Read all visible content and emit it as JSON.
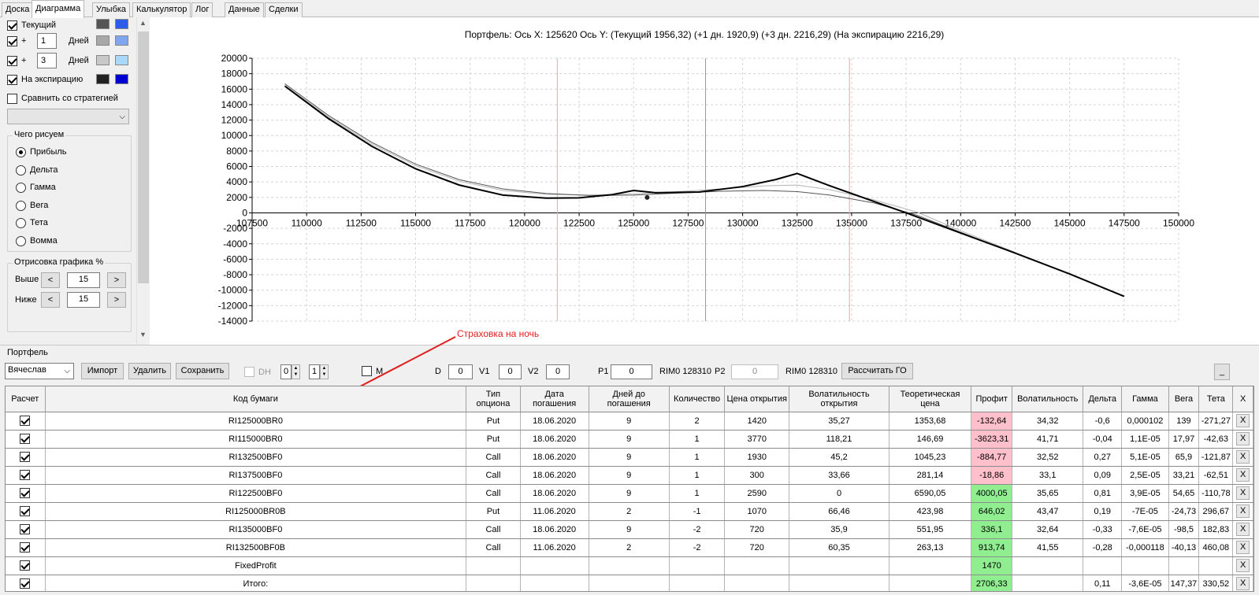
{
  "tabs": [
    "Доска",
    "Диаграмма",
    "Улыбка",
    "Калькулятор",
    "Лог",
    "Данные",
    "Сделки"
  ],
  "active_tab": "Диаграмма",
  "left_panel": {
    "current_label": "Текущий",
    "plus_label": "+",
    "days_label": "Дней",
    "plus1_value": "1",
    "plus3_value": "3",
    "expiry_label": "На экспирацию",
    "compare_label": "Сравнить со стратегией",
    "draw_group_title": "Чего рисуем",
    "radio_options": [
      "Прибыль",
      "Дельта",
      "Гамма",
      "Вега",
      "Тета",
      "Вомма"
    ],
    "draw_pct_title": "Отрисовка графика %",
    "above_label": "Выше",
    "below_label": "Ниже",
    "above_value": "15",
    "below_value": "15",
    "dec_label": "<",
    "inc_label": ">",
    "swatch_colors": {
      "current_dark": "#555555",
      "current_light": "#2b5de8",
      "plus1_dark": "#a8a8a8",
      "plus1_light": "#7fa6ef",
      "plus3_dark": "#c8c8c8",
      "plus3_light": "#aad8fa",
      "expiry_dark": "#222222",
      "expiry_light": "#0000d0"
    }
  },
  "chart_data": {
    "type": "line",
    "title": "Портфель: Ось X: 125620 Ось Y:  (Текущий 1956,32)  (+1 дн. 1920,9)  (+3 дн. 2216,29)  (На экспирацию 2216,29)",
    "xlim": [
      107500,
      150000
    ],
    "ylim": [
      -14000,
      20000
    ],
    "x_ticks": [
      107500,
      110000,
      112500,
      115000,
      117500,
      120000,
      122500,
      125000,
      127500,
      130000,
      132500,
      135000,
      137500,
      140000,
      142500,
      145000,
      147500,
      150000
    ],
    "y_ticks": [
      20000,
      18000,
      16000,
      14000,
      12000,
      10000,
      8000,
      6000,
      4000,
      2000,
      0,
      -2000,
      -4000,
      -6000,
      -8000,
      -10000,
      -12000,
      -14000
    ],
    "grid": true,
    "vlines": [
      {
        "x": 121500,
        "color": "#f4a0b0"
      },
      {
        "x": 128300,
        "color": "#8a9ab0"
      },
      {
        "x": 134900,
        "color": "#f4a0b0"
      }
    ],
    "marker": {
      "x": 125620,
      "y": 2000
    },
    "series": [
      {
        "color": "#000000",
        "width": 2,
        "x": [
          109000,
          111000,
          113000,
          115000,
          117000,
          119000,
          121000,
          122500,
          124000,
          125000,
          126000,
          128000,
          130000,
          131500,
          132500,
          134000,
          137500,
          140000,
          142500,
          145000,
          147500
        ],
        "y": [
          16400,
          12200,
          8600,
          5700,
          3600,
          2300,
          1900,
          1950,
          2350,
          2900,
          2600,
          2700,
          3400,
          4300,
          5100,
          3500,
          0,
          -2600,
          -5200,
          -7900,
          -10800
        ]
      },
      {
        "color": "#555555",
        "width": 1,
        "x": [
          109000,
          111000,
          113000,
          115000,
          117000,
          119000,
          121000,
          123000,
          125000,
          127000,
          129000,
          131000,
          132500,
          134000,
          136000,
          138000,
          140000,
          142500
        ],
        "y": [
          16700,
          12600,
          9100,
          6300,
          4300,
          3100,
          2500,
          2250,
          2300,
          2550,
          2800,
          2900,
          2750,
          2300,
          1300,
          -300,
          -2500,
          -5200
        ]
      },
      {
        "color": "#b4b4b4",
        "width": 1,
        "x": [
          109000,
          111000,
          113000,
          115000,
          117000,
          119000,
          121000,
          123000,
          125000,
          127000,
          129000,
          131000,
          132500,
          134000,
          136000,
          138000,
          140000,
          142500
        ],
        "y": [
          16500,
          12400,
          8900,
          6100,
          4100,
          2900,
          2400,
          2300,
          2450,
          2750,
          3100,
          3500,
          3600,
          3000,
          1700,
          100,
          -2300,
          -5100
        ]
      }
    ]
  },
  "annotation": "Страховка на ночь",
  "portfolio": {
    "title": "Портфель",
    "account": "Вячеслав",
    "import_btn": "Импорт",
    "delete_btn": "Удалить",
    "save_btn": "Сохранить",
    "dh_label": "DH",
    "dh_spin1": "0",
    "dh_spin2": "1",
    "m_label": "M",
    "d_label": "D",
    "d_value": "0",
    "v1_label": "V1",
    "v1_value": "0",
    "v2_label": "V2",
    "v2_value": "0",
    "p1_label": "P1",
    "p1_value": "0",
    "rim1": "RIM0 128310",
    "p2_label": "P2",
    "p2_value": "0",
    "rim2": "RIM0 128310",
    "calc_go_btn": "Рассчитать ГО",
    "minimize_btn": "_"
  },
  "table": {
    "headers": [
      "Расчет",
      "Код бумаги",
      "Тип опциона",
      "Дата погашения",
      "Дней до погашения",
      "Количество",
      "Цена открытия",
      "Волатильность открытия",
      "Теоретическая цена",
      "Профит",
      "Волатильность",
      "Дельта",
      "Гамма",
      "Вега",
      "Тета",
      "X"
    ],
    "rows": [
      {
        "code": "RI125000BR0",
        "type": "Put",
        "date": "18.06.2020",
        "days": "9",
        "qty": "2",
        "open": "1420",
        "vol_open": "35,27",
        "theo": "1353,68",
        "profit": "-132,64",
        "pc": "red",
        "vol": "34,32",
        "delta": "-0,6",
        "gamma": "0,000102",
        "vega": "139",
        "theta": "-271,27",
        "x": "X"
      },
      {
        "code": "RI115000BR0",
        "type": "Put",
        "date": "18.06.2020",
        "days": "9",
        "qty": "1",
        "open": "3770",
        "vol_open": "118,21",
        "theo": "146,69",
        "profit": "-3623,31",
        "pc": "red",
        "vol": "41,71",
        "delta": "-0,04",
        "gamma": "1,1E-05",
        "vega": "17,97",
        "theta": "-42,63",
        "x": "X"
      },
      {
        "code": "RI132500BF0",
        "type": "Call",
        "date": "18.06.2020",
        "days": "9",
        "qty": "1",
        "open": "1930",
        "vol_open": "45,2",
        "theo": "1045,23",
        "profit": "-884,77",
        "pc": "red",
        "vol": "32,52",
        "delta": "0,27",
        "gamma": "5,1E-05",
        "vega": "65,9",
        "theta": "-121,87",
        "x": "X"
      },
      {
        "code": "RI137500BF0",
        "type": "Call",
        "date": "18.06.2020",
        "days": "9",
        "qty": "1",
        "open": "300",
        "vol_open": "33,66",
        "theo": "281,14",
        "profit": "-18,86",
        "pc": "red",
        "vol": "33,1",
        "delta": "0,09",
        "gamma": "2,5E-05",
        "vega": "33,21",
        "theta": "-62,51",
        "x": "X"
      },
      {
        "code": "RI122500BF0",
        "type": "Call",
        "date": "18.06.2020",
        "days": "9",
        "qty": "1",
        "open": "2590",
        "vol_open": "0",
        "theo": "6590,05",
        "profit": "4000,05",
        "pc": "green",
        "vol": "35,65",
        "delta": "0,81",
        "gamma": "3,9E-05",
        "vega": "54,65",
        "theta": "-110,78",
        "x": "X"
      },
      {
        "code": "RI125000BR0B",
        "type": "Put",
        "date": "11.06.2020",
        "days": "2",
        "qty": "-1",
        "open": "1070",
        "vol_open": "66,46",
        "theo": "423,98",
        "profit": "646,02",
        "pc": "green",
        "vol": "43,47",
        "delta": "0,19",
        "gamma": "-7E-05",
        "vega": "-24,73",
        "theta": "296,67",
        "x": "X"
      },
      {
        "code": "RI135000BF0",
        "type": "Call",
        "date": "18.06.2020",
        "days": "9",
        "qty": "-2",
        "open": "720",
        "vol_open": "35,9",
        "theo": "551,95",
        "profit": "336,1",
        "pc": "green",
        "vol": "32,64",
        "delta": "-0,33",
        "gamma": "-7,6E-05",
        "vega": "-98,5",
        "theta": "182,83",
        "x": "X"
      },
      {
        "code": "RI132500BF0B",
        "type": "Call",
        "date": "11.06.2020",
        "days": "2",
        "qty": "-2",
        "open": "720",
        "vol_open": "60,35",
        "theo": "263,13",
        "profit": "913,74",
        "pc": "green",
        "vol": "41,55",
        "delta": "-0,28",
        "gamma": "-0,000118",
        "vega": "-40,13",
        "theta": "460,08",
        "x": "X"
      },
      {
        "code": "FixedProfit",
        "type": "",
        "date": "",
        "days": "",
        "qty": "",
        "open": "",
        "vol_open": "",
        "theo": "",
        "profit": "1470",
        "pc": "green",
        "vol": "",
        "delta": "",
        "gamma": "",
        "vega": "",
        "theta": "",
        "x": "X"
      },
      {
        "code": "Итого:",
        "type": "",
        "date": "",
        "days": "",
        "qty": "",
        "open": "",
        "vol_open": "",
        "theo": "",
        "profit": "2706,33",
        "pc": "green",
        "vol": "",
        "delta": "0,11",
        "gamma": "-3,6E-05",
        "vega": "147,37",
        "theta": "330,52",
        "x": "X"
      }
    ]
  }
}
